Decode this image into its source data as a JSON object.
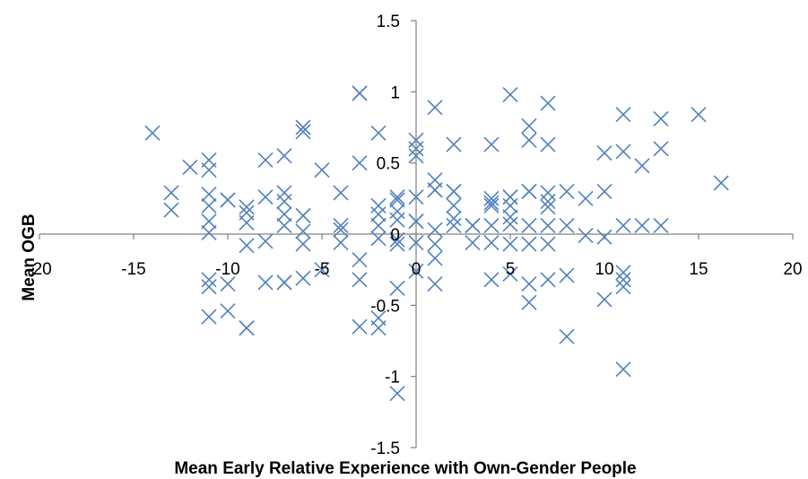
{
  "chart_data": {
    "type": "scatter",
    "title": "",
    "xlabel": "Mean  Early  Relative  Experience with Own-Gender People",
    "ylabel": "Mean OGB",
    "xlim": [
      -20,
      20
    ],
    "ylim": [
      -1.5,
      1.5
    ],
    "x_ticks": [
      "-20",
      "-15",
      "-10",
      "-5",
      "0",
      "5",
      "10",
      "15",
      "20"
    ],
    "y_ticks": [
      "1.5",
      "1",
      "0.5",
      "0",
      "-0.5",
      "-1",
      "-1.5"
    ],
    "grid": false,
    "legend": "none",
    "marker": "x",
    "marker_color": "#4f81bd",
    "points": [
      [
        -14,
        0.71
      ],
      [
        -13,
        0.29
      ],
      [
        -13,
        0.17
      ],
      [
        -12,
        0.47
      ],
      [
        -11,
        0.52
      ],
      [
        -11,
        0.45
      ],
      [
        -11,
        0.28
      ],
      [
        -11,
        0.2
      ],
      [
        -11,
        0.09
      ],
      [
        -11,
        0.01
      ],
      [
        -11,
        -0.32
      ],
      [
        -11,
        -0.37
      ],
      [
        -11,
        -0.58
      ],
      [
        -10,
        0.24
      ],
      [
        -10,
        0.24
      ],
      [
        -10,
        -0.35
      ],
      [
        -10,
        -0.54
      ],
      [
        -9,
        0.19
      ],
      [
        -9,
        0.15
      ],
      [
        -9,
        0.08
      ],
      [
        -9,
        -0.08
      ],
      [
        -9,
        -0.66
      ],
      [
        -9,
        -0.66
      ],
      [
        -8,
        0.52
      ],
      [
        -8,
        0.26
      ],
      [
        -8,
        -0.05
      ],
      [
        -8,
        -0.34
      ],
      [
        -7,
        0.55
      ],
      [
        -7,
        0.29
      ],
      [
        -7,
        0.23
      ],
      [
        -7,
        0.14
      ],
      [
        -7,
        0.06
      ],
      [
        -7,
        -0.34
      ],
      [
        -7,
        -0.34
      ],
      [
        -6,
        0.75
      ],
      [
        -6,
        0.72
      ],
      [
        -6,
        0.13
      ],
      [
        -6,
        0.02
      ],
      [
        -6,
        -0.07
      ],
      [
        -6,
        -0.31
      ],
      [
        -5,
        0.45
      ],
      [
        -5,
        -0.25
      ],
      [
        -4,
        0.29
      ],
      [
        -4,
        0.06
      ],
      [
        -4,
        0.03
      ],
      [
        -4,
        -0.06
      ],
      [
        -3,
        0.99
      ],
      [
        -3,
        0.99
      ],
      [
        -3,
        0.5
      ],
      [
        -3,
        -0.18
      ],
      [
        -3,
        -0.32
      ],
      [
        -3,
        -0.65
      ],
      [
        -2,
        0.71
      ],
      [
        -2,
        0.2
      ],
      [
        -2,
        0.14
      ],
      [
        -2,
        0.06
      ],
      [
        -2,
        -0.03
      ],
      [
        -2,
        -0.59
      ],
      [
        -2,
        -0.66
      ],
      [
        -1,
        0.26
      ],
      [
        -1,
        0.24
      ],
      [
        -1,
        0.16
      ],
      [
        -1,
        0.1
      ],
      [
        -1,
        -0.04
      ],
      [
        -1,
        -0.07
      ],
      [
        -1,
        -0.38
      ],
      [
        -1,
        -1.12
      ],
      [
        0,
        0.66
      ],
      [
        0,
        0.6
      ],
      [
        0,
        0.55
      ],
      [
        0,
        0.26
      ],
      [
        0,
        0.09
      ],
      [
        0,
        0.09
      ],
      [
        0,
        -0.06
      ],
      [
        0,
        -0.26
      ],
      [
        1,
        0.89
      ],
      [
        1,
        0.38
      ],
      [
        1,
        0.31
      ],
      [
        1,
        0.31
      ],
      [
        1,
        0.03
      ],
      [
        1,
        -0.07
      ],
      [
        1,
        -0.17
      ],
      [
        1,
        -0.35
      ],
      [
        2,
        0.63
      ],
      [
        2,
        0.3
      ],
      [
        2,
        0.3
      ],
      [
        2,
        0.2
      ],
      [
        2,
        0.11
      ],
      [
        2,
        0.06
      ],
      [
        3,
        0.06
      ],
      [
        3,
        0.06
      ],
      [
        3,
        -0.06
      ],
      [
        4,
        0.63
      ],
      [
        4,
        0.25
      ],
      [
        4,
        0.22
      ],
      [
        4,
        0.2
      ],
      [
        4,
        0.06
      ],
      [
        4,
        -0.06
      ],
      [
        4,
        -0.32
      ],
      [
        5,
        0.98
      ],
      [
        5,
        0.26
      ],
      [
        5,
        0.26
      ],
      [
        5,
        0.2
      ],
      [
        5,
        0.12
      ],
      [
        5,
        0.07
      ],
      [
        5,
        -0.07
      ],
      [
        5,
        -0.28
      ],
      [
        6,
        0.76
      ],
      [
        6,
        0.66
      ],
      [
        6,
        0.3
      ],
      [
        6,
        0.3
      ],
      [
        6,
        0.06
      ],
      [
        6,
        -0.07
      ],
      [
        6,
        -0.35
      ],
      [
        6,
        -0.48
      ],
      [
        7,
        0.92
      ],
      [
        7,
        0.63
      ],
      [
        7,
        0.29
      ],
      [
        7,
        0.23
      ],
      [
        7,
        0.19
      ],
      [
        7,
        0.06
      ],
      [
        7,
        -0.07
      ],
      [
        7,
        -0.32
      ],
      [
        8,
        0.3
      ],
      [
        8,
        0.06
      ],
      [
        8,
        -0.29
      ],
      [
        8,
        -0.72
      ],
      [
        9,
        0.25
      ],
      [
        9,
        -0.01
      ],
      [
        10,
        0.57
      ],
      [
        10,
        0.3
      ],
      [
        10,
        -0.02
      ],
      [
        10,
        -0.46
      ],
      [
        11,
        0.84
      ],
      [
        11,
        0.58
      ],
      [
        11,
        0.06
      ],
      [
        11,
        -0.27
      ],
      [
        11,
        -0.32
      ],
      [
        11,
        -0.37
      ],
      [
        11,
        -0.95
      ],
      [
        12,
        0.48
      ],
      [
        12,
        0.06
      ],
      [
        13,
        0.81
      ],
      [
        13,
        0.6
      ],
      [
        13,
        0.06
      ],
      [
        15,
        0.84
      ],
      [
        16.2,
        0.36
      ]
    ]
  }
}
